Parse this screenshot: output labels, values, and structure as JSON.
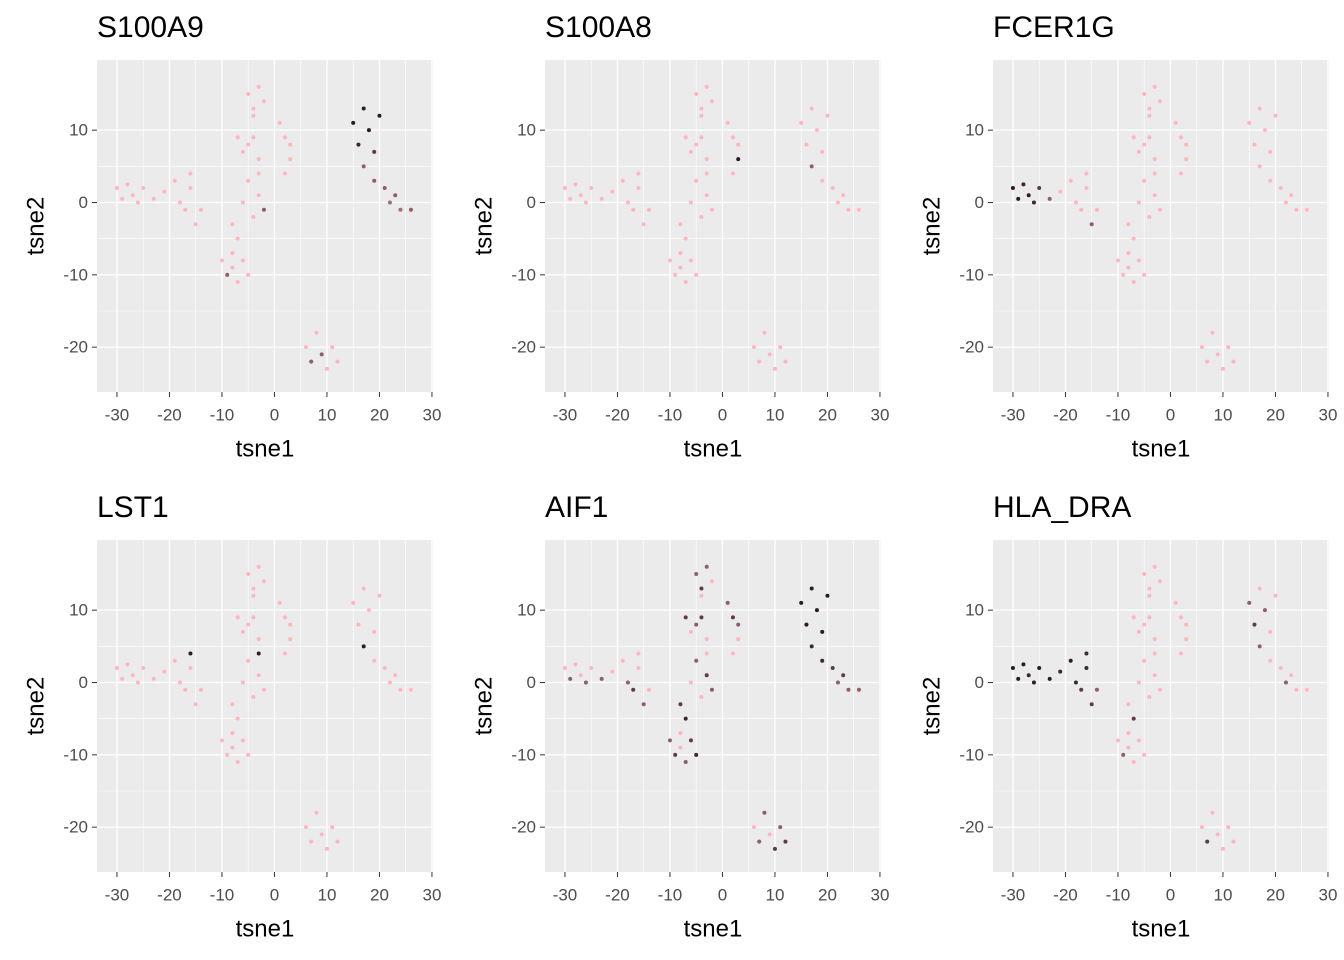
{
  "chart_data": [
    {
      "type": "scatter",
      "title": "S100A9",
      "x_label": "tsne1",
      "y_label": "tsne2",
      "xlim": [
        -33.8,
        30.2
      ],
      "ylim": [
        -26.2,
        19.7
      ],
      "xticks": [
        -30,
        -20,
        -10,
        0,
        10,
        20,
        30
      ],
      "yticks": [
        -20,
        -10,
        0,
        10
      ],
      "grid": true,
      "x": [
        -30,
        -29,
        -28,
        -27,
        -26,
        -25,
        -23,
        -21,
        -19,
        -18,
        -17,
        -16,
        -15,
        -14,
        -16,
        -10,
        -9,
        -8,
        -7,
        -6,
        -5,
        -8,
        -8,
        -6,
        -5,
        -4,
        -3,
        -2,
        -7,
        -3,
        -5,
        -4,
        -3,
        -2,
        -4,
        -7,
        -6,
        -4,
        -3,
        -5,
        1,
        2,
        3,
        2,
        3,
        15,
        16,
        17,
        18,
        19,
        20,
        17,
        19,
        21,
        22,
        23,
        24,
        26,
        6,
        7,
        8,
        9,
        10,
        11,
        12
      ],
      "y": [
        2,
        0.5,
        2.5,
        1,
        0,
        2,
        0.5,
        1.5,
        3,
        0,
        -1,
        2,
        -3,
        -1,
        4,
        -8,
        -10,
        -9,
        -11,
        -8,
        -10,
        -7,
        -3,
        0,
        3,
        -2,
        1,
        -1,
        -5,
        4,
        15,
        13,
        16,
        14,
        12,
        9,
        7,
        9,
        6,
        8,
        11,
        9,
        6,
        4,
        8,
        11,
        8,
        13,
        10,
        7,
        12,
        5,
        3,
        2,
        0,
        1,
        -1,
        -1,
        -20,
        -22,
        -18,
        -21,
        -23,
        -20,
        -22
      ],
      "colors": [
        "#ffb6c1",
        "#ffb6c1",
        "#ffb6c1",
        "#ffb6c1",
        "#ffb6c1",
        "#ffb6c1",
        "#ffb6c1",
        "#ffb6c1",
        "#ffb6c1",
        "#ffb6c1",
        "#ffb6c1",
        "#ffb6c1",
        "#ffb6c1",
        "#ffb6c1",
        "#ffb6c1",
        "#ffb6c1",
        "#8f5f68",
        "#ffb6c1",
        "#ffb6c1",
        "#ffb6c1",
        "#ffb6c1",
        "#ffb6c1",
        "#ffb6c1",
        "#ffb6c1",
        "#ffb6c1",
        "#ffb6c1",
        "#ffb6c1",
        "#8f5f68",
        "#ffb6c1",
        "#ffb6c1",
        "#ffb6c1",
        "#ffb6c1",
        "#ffb6c1",
        "#ffb6c1",
        "#ffb6c1",
        "#ffb6c1",
        "#ffb6c1",
        "#ffb6c1",
        "#ffb6c1",
        "#ffb6c1",
        "#ffb6c1",
        "#ffb6c1",
        "#ffb6c1",
        "#ffb6c1",
        "#ffb6c1",
        "#2e1c20",
        "#3f272c",
        "#2e1c20",
        "#2e1c20",
        "#5c3d43",
        "#2e1c20",
        "#8f5f68",
        "#8f5f68",
        "#8f5f68",
        "#a0707a",
        "#8f5f68",
        "#a0707a",
        "#8f5f68",
        "#ffb6c1",
        "#8f5f68",
        "#ffb6c1",
        "#8f5f68",
        "#ffb6c1",
        "#ffb6c1",
        "#ffb6c1"
      ]
    },
    {
      "type": "scatter",
      "title": "S100A8",
      "x_label": "tsne1",
      "y_label": "tsne2",
      "xlim": [
        -33.8,
        30.2
      ],
      "ylim": [
        -26.2,
        19.7
      ],
      "xticks": [
        -30,
        -20,
        -10,
        0,
        10,
        20,
        30
      ],
      "yticks": [
        -20,
        -10,
        0,
        10
      ],
      "grid": true,
      "x": [
        -30,
        -29,
        -28,
        -27,
        -26,
        -25,
        -23,
        -21,
        -19,
        -18,
        -17,
        -16,
        -15,
        -14,
        -16,
        -10,
        -9,
        -8,
        -7,
        -6,
        -5,
        -8,
        -8,
        -6,
        -5,
        -4,
        -3,
        -2,
        -7,
        -3,
        -5,
        -4,
        -3,
        -2,
        -4,
        -7,
        -6,
        -4,
        -3,
        -5,
        1,
        2,
        3,
        2,
        3,
        15,
        16,
        17,
        18,
        19,
        20,
        17,
        19,
        21,
        22,
        23,
        24,
        26,
        6,
        7,
        8,
        9,
        10,
        11,
        12
      ],
      "y": [
        2,
        0.5,
        2.5,
        1,
        0,
        2,
        0.5,
        1.5,
        3,
        0,
        -1,
        2,
        -3,
        -1,
        4,
        -8,
        -10,
        -9,
        -11,
        -8,
        -10,
        -7,
        -3,
        0,
        3,
        -2,
        1,
        -1,
        -5,
        4,
        15,
        13,
        16,
        14,
        12,
        9,
        7,
        9,
        6,
        8,
        11,
        9,
        6,
        4,
        8,
        11,
        8,
        13,
        10,
        7,
        12,
        5,
        3,
        2,
        0,
        1,
        -1,
        -1,
        -20,
        -22,
        -18,
        -21,
        -23,
        -20,
        -22
      ],
      "colors": [
        "#ffb6c1",
        "#ffb6c1",
        "#ffb6c1",
        "#ffb6c1",
        "#ffb6c1",
        "#ffb6c1",
        "#ffb6c1",
        "#ffb6c1",
        "#ffb6c1",
        "#ffb6c1",
        "#ffb6c1",
        "#ffb6c1",
        "#ffb6c1",
        "#ffb6c1",
        "#ffb6c1",
        "#ffb6c1",
        "#ffb6c1",
        "#ffb6c1",
        "#ffb6c1",
        "#ffb6c1",
        "#ffb6c1",
        "#ffb6c1",
        "#ffb6c1",
        "#ffb6c1",
        "#ffb6c1",
        "#ffb6c1",
        "#ffb6c1",
        "#ffb6c1",
        "#ffb6c1",
        "#ffb6c1",
        "#ffb6c1",
        "#ffb6c1",
        "#ffb6c1",
        "#ffb6c1",
        "#ffb6c1",
        "#ffb6c1",
        "#ffb6c1",
        "#ffb6c1",
        "#ffb6c1",
        "#ffb6c1",
        "#ffb6c1",
        "#ffb6c1",
        "#2e1c20",
        "#ffb6c1",
        "#ffb6c1",
        "#ffb6c1",
        "#ffb6c1",
        "#ffb6c1",
        "#ffb6c1",
        "#ffb6c1",
        "#ffb6c1",
        "#8f5f68",
        "#ffb6c1",
        "#ffb6c1",
        "#ffb6c1",
        "#ffb6c1",
        "#ffb6c1",
        "#ffb6c1",
        "#ffb6c1",
        "#ffb6c1",
        "#ffb6c1",
        "#ffb6c1",
        "#ffb6c1",
        "#ffb6c1",
        "#ffb6c1"
      ]
    },
    {
      "type": "scatter",
      "title": "FCER1G",
      "x_label": "tsne1",
      "y_label": "tsne2",
      "xlim": [
        -33.8,
        30.2
      ],
      "ylim": [
        -26.2,
        19.7
      ],
      "xticks": [
        -30,
        -20,
        -10,
        0,
        10,
        20,
        30
      ],
      "yticks": [
        -20,
        -10,
        0,
        10
      ],
      "grid": true,
      "x": [
        -30,
        -29,
        -28,
        -27,
        -26,
        -25,
        -23,
        -21,
        -19,
        -18,
        -17,
        -16,
        -15,
        -14,
        -16,
        -10,
        -9,
        -8,
        -7,
        -6,
        -5,
        -8,
        -8,
        -6,
        -5,
        -4,
        -3,
        -2,
        -7,
        -3,
        -5,
        -4,
        -3,
        -2,
        -4,
        -7,
        -6,
        -4,
        -3,
        -5,
        1,
        2,
        3,
        2,
        3,
        15,
        16,
        17,
        18,
        19,
        20,
        17,
        19,
        21,
        22,
        23,
        24,
        26,
        6,
        7,
        8,
        9,
        10,
        11,
        12
      ],
      "y": [
        2,
        0.5,
        2.5,
        1,
        0,
        2,
        0.5,
        1.5,
        3,
        0,
        -1,
        2,
        -3,
        -1,
        4,
        -8,
        -10,
        -9,
        -11,
        -8,
        -10,
        -7,
        -3,
        0,
        3,
        -2,
        1,
        -1,
        -5,
        4,
        15,
        13,
        16,
        14,
        12,
        9,
        7,
        9,
        6,
        8,
        11,
        9,
        6,
        4,
        8,
        11,
        8,
        13,
        10,
        7,
        12,
        5,
        3,
        2,
        0,
        1,
        -1,
        -1,
        -20,
        -22,
        -18,
        -21,
        -23,
        -20,
        -22
      ],
      "colors": [
        "#2e1c20",
        "#2e1c20",
        "#3f272c",
        "#2e1c20",
        "#3f272c",
        "#5c3d43",
        "#8f5f68",
        "#ffb6c1",
        "#ffb6c1",
        "#ffb6c1",
        "#ffb6c1",
        "#ffb6c1",
        "#8f5f68",
        "#ffb6c1",
        "#ffb6c1",
        "#ffb6c1",
        "#ffb6c1",
        "#ffb6c1",
        "#ffb6c1",
        "#ffb6c1",
        "#ffb6c1",
        "#ffb6c1",
        "#ffb6c1",
        "#ffb6c1",
        "#ffb6c1",
        "#ffb6c1",
        "#ffb6c1",
        "#ffb6c1",
        "#ffb6c1",
        "#ffb6c1",
        "#ffb6c1",
        "#ffb6c1",
        "#ffb6c1",
        "#ffb6c1",
        "#ffb6c1",
        "#ffb6c1",
        "#ffb6c1",
        "#ffb6c1",
        "#ffb6c1",
        "#ffb6c1",
        "#ffb6c1",
        "#ffb6c1",
        "#ffb6c1",
        "#ffb6c1",
        "#ffb6c1",
        "#ffb6c1",
        "#ffb6c1",
        "#ffb6c1",
        "#ffb6c1",
        "#ffb6c1",
        "#ffb6c1",
        "#ffb6c1",
        "#ffb6c1",
        "#ffb6c1",
        "#ffb6c1",
        "#ffb6c1",
        "#ffb6c1",
        "#ffb6c1",
        "#ffb6c1",
        "#ffb6c1",
        "#ffb6c1",
        "#ffb6c1",
        "#ffb6c1",
        "#ffb6c1",
        "#ffb6c1"
      ]
    },
    {
      "type": "scatter",
      "title": "LST1",
      "x_label": "tsne1",
      "y_label": "tsne2",
      "xlim": [
        -33.8,
        30.2
      ],
      "ylim": [
        -26.2,
        19.7
      ],
      "xticks": [
        -30,
        -20,
        -10,
        0,
        10,
        20,
        30
      ],
      "yticks": [
        -20,
        -10,
        0,
        10
      ],
      "grid": true,
      "x": [
        -30,
        -29,
        -28,
        -27,
        -26,
        -25,
        -23,
        -21,
        -19,
        -18,
        -17,
        -16,
        -15,
        -14,
        -16,
        -10,
        -9,
        -8,
        -7,
        -6,
        -5,
        -8,
        -8,
        -6,
        -5,
        -4,
        -3,
        -2,
        -7,
        -3,
        -5,
        -4,
        -3,
        -2,
        -4,
        -7,
        -6,
        -4,
        -3,
        -5,
        1,
        2,
        3,
        2,
        3,
        15,
        16,
        17,
        18,
        19,
        20,
        17,
        19,
        21,
        22,
        23,
        24,
        26,
        6,
        7,
        8,
        9,
        10,
        11,
        12
      ],
      "y": [
        2,
        0.5,
        2.5,
        1,
        0,
        2,
        0.5,
        1.5,
        3,
        0,
        -1,
        2,
        -3,
        -1,
        4,
        -8,
        -10,
        -9,
        -11,
        -8,
        -10,
        -7,
        -3,
        0,
        3,
        -2,
        1,
        -1,
        -5,
        4,
        15,
        13,
        16,
        14,
        12,
        9,
        7,
        9,
        6,
        8,
        11,
        9,
        6,
        4,
        8,
        11,
        8,
        13,
        10,
        7,
        12,
        5,
        3,
        2,
        0,
        1,
        -1,
        -1,
        -20,
        -22,
        -18,
        -21,
        -23,
        -20,
        -22
      ],
      "colors": [
        "#ffb6c1",
        "#ffb6c1",
        "#ffb6c1",
        "#ffb6c1",
        "#ffb6c1",
        "#ffb6c1",
        "#ffb6c1",
        "#ffb6c1",
        "#ffb6c1",
        "#ffb6c1",
        "#ffb6c1",
        "#ffb6c1",
        "#ffb6c1",
        "#ffb6c1",
        "#2e1c20",
        "#ffb6c1",
        "#ffb6c1",
        "#ffb6c1",
        "#ffb6c1",
        "#ffb6c1",
        "#ffb6c1",
        "#ffb6c1",
        "#ffb6c1",
        "#ffb6c1",
        "#ffb6c1",
        "#ffb6c1",
        "#ffb6c1",
        "#ffb6c1",
        "#ffb6c1",
        "#2e1c20",
        "#ffb6c1",
        "#ffb6c1",
        "#ffb6c1",
        "#ffb6c1",
        "#ffb6c1",
        "#ffb6c1",
        "#ffb6c1",
        "#ffb6c1",
        "#ffb6c1",
        "#ffb6c1",
        "#ffb6c1",
        "#ffb6c1",
        "#ffb6c1",
        "#ffb6c1",
        "#ffb6c1",
        "#ffb6c1",
        "#ffb6c1",
        "#ffb6c1",
        "#ffb6c1",
        "#ffb6c1",
        "#ffb6c1",
        "#2e1c20",
        "#ffb6c1",
        "#ffb6c1",
        "#ffb6c1",
        "#ffb6c1",
        "#ffb6c1",
        "#ffb6c1",
        "#ffb6c1",
        "#ffb6c1",
        "#ffb6c1",
        "#ffb6c1",
        "#ffb6c1",
        "#ffb6c1",
        "#ffb6c1"
      ]
    },
    {
      "type": "scatter",
      "title": "AIF1",
      "x_label": "tsne1",
      "y_label": "tsne2",
      "xlim": [
        -33.8,
        30.2
      ],
      "ylim": [
        -26.2,
        19.7
      ],
      "xticks": [
        -30,
        -20,
        -10,
        0,
        10,
        20,
        30
      ],
      "yticks": [
        -20,
        -10,
        0,
        10
      ],
      "grid": true,
      "x": [
        -30,
        -29,
        -28,
        -27,
        -26,
        -25,
        -23,
        -21,
        -19,
        -18,
        -17,
        -16,
        -15,
        -14,
        -16,
        -10,
        -9,
        -8,
        -7,
        -6,
        -5,
        -8,
        -8,
        -6,
        -5,
        -4,
        -3,
        -2,
        -7,
        -3,
        -5,
        -4,
        -3,
        -2,
        -4,
        -7,
        -6,
        -4,
        -3,
        -5,
        1,
        2,
        3,
        2,
        3,
        15,
        16,
        17,
        18,
        19,
        20,
        17,
        19,
        21,
        22,
        23,
        24,
        26,
        6,
        7,
        8,
        9,
        10,
        11,
        12
      ],
      "y": [
        2,
        0.5,
        2.5,
        1,
        0,
        2,
        0.5,
        1.5,
        3,
        0,
        -1,
        2,
        -3,
        -1,
        4,
        -8,
        -10,
        -9,
        -11,
        -8,
        -10,
        -7,
        -3,
        0,
        3,
        -2,
        1,
        -1,
        -5,
        4,
        15,
        13,
        16,
        14,
        12,
        9,
        7,
        9,
        6,
        8,
        11,
        9,
        6,
        4,
        8,
        11,
        8,
        13,
        10,
        7,
        12,
        5,
        3,
        2,
        0,
        1,
        -1,
        -1,
        -20,
        -22,
        -18,
        -21,
        -23,
        -20,
        -22
      ],
      "colors": [
        "#ffb6c1",
        "#8f5f68",
        "#ffb6c1",
        "#ffb6c1",
        "#8f5f68",
        "#ffb6c1",
        "#8f5f68",
        "#ffb6c1",
        "#ffb6c1",
        "#8f5f68",
        "#5c3d43",
        "#ffb6c1",
        "#8f5f68",
        "#ffb6c1",
        "#ffb6c1",
        "#8f5f68",
        "#5c3d43",
        "#ffb6c1",
        "#8f5f68",
        "#5c3d43",
        "#3f272c",
        "#ffb6c1",
        "#5c3d43",
        "#ffb6c1",
        "#8f5f68",
        "#ffb6c1",
        "#5c3d43",
        "#8f5f68",
        "#3f272c",
        "#ffb6c1",
        "#8f5f68",
        "#5c3d43",
        "#8f5f68",
        "#ffb6c1",
        "#ffb6c1",
        "#5c3d43",
        "#ffb6c1",
        "#5c3d43",
        "#ffb6c1",
        "#8f5f68",
        "#8f5f68",
        "#5c3d43",
        "#ffb6c1",
        "#ffb6c1",
        "#8f5f68",
        "#2e1c20",
        "#2e1c20",
        "#2e1c20",
        "#2e1c20",
        "#2e1c20",
        "#2e1c20",
        "#3f272c",
        "#3f272c",
        "#5c3d43",
        "#8f5f68",
        "#5c3d43",
        "#8f5f68",
        "#8f5f68",
        "#ffb6c1",
        "#8f5f68",
        "#8f5f68",
        "#ffb6c1",
        "#5c3d43",
        "#8f5f68",
        "#5c3d43"
      ]
    },
    {
      "type": "scatter",
      "title": "HLA_DRA",
      "x_label": "tsne1",
      "y_label": "tsne2",
      "xlim": [
        -33.8,
        30.2
      ],
      "ylim": [
        -26.2,
        19.7
      ],
      "xticks": [
        -30,
        -20,
        -10,
        0,
        10,
        20,
        30
      ],
      "yticks": [
        -20,
        -10,
        0,
        10
      ],
      "grid": true,
      "x": [
        -30,
        -29,
        -28,
        -27,
        -26,
        -25,
        -23,
        -21,
        -19,
        -18,
        -17,
        -16,
        -15,
        -14,
        -16,
        -10,
        -9,
        -8,
        -7,
        -6,
        -5,
        -8,
        -8,
        -6,
        -5,
        -4,
        -3,
        -2,
        -7,
        -3,
        -5,
        -4,
        -3,
        -2,
        -4,
        -7,
        -6,
        -4,
        -3,
        -5,
        1,
        2,
        3,
        2,
        3,
        15,
        16,
        17,
        18,
        19,
        20,
        17,
        19,
        21,
        22,
        23,
        24,
        26,
        6,
        7,
        8,
        9,
        10,
        11,
        12
      ],
      "y": [
        2,
        0.5,
        2.5,
        1,
        0,
        2,
        0.5,
        1.5,
        3,
        0,
        -1,
        2,
        -3,
        -1,
        4,
        -8,
        -10,
        -9,
        -11,
        -8,
        -10,
        -7,
        -3,
        0,
        3,
        -2,
        1,
        -1,
        -5,
        4,
        15,
        13,
        16,
        14,
        12,
        9,
        7,
        9,
        6,
        8,
        11,
        9,
        6,
        4,
        8,
        11,
        8,
        13,
        10,
        7,
        12,
        5,
        3,
        2,
        0,
        1,
        -1,
        -1,
        -20,
        -22,
        -18,
        -21,
        -23,
        -20,
        -22
      ],
      "colors": [
        "#2e1c20",
        "#2e1c20",
        "#2e1c20",
        "#3f272c",
        "#2e1c20",
        "#2e1c20",
        "#2e1c20",
        "#3f272c",
        "#2e1c20",
        "#3f272c",
        "#5c3d43",
        "#3f272c",
        "#5c3d43",
        "#8f5f68",
        "#3f272c",
        "#ffb6c1",
        "#8f5f68",
        "#ffb6c1",
        "#ffb6c1",
        "#ffb6c1",
        "#ffb6c1",
        "#ffb6c1",
        "#ffb6c1",
        "#ffb6c1",
        "#ffb6c1",
        "#ffb6c1",
        "#ffb6c1",
        "#ffb6c1",
        "#5c3d43",
        "#ffb6c1",
        "#ffb6c1",
        "#ffb6c1",
        "#ffb6c1",
        "#ffb6c1",
        "#ffb6c1",
        "#ffb6c1",
        "#ffb6c1",
        "#ffb6c1",
        "#ffb6c1",
        "#ffb6c1",
        "#ffb6c1",
        "#ffb6c1",
        "#ffb6c1",
        "#ffb6c1",
        "#ffb6c1",
        "#8f5f68",
        "#5c3d43",
        "#ffb6c1",
        "#8f5f68",
        "#ffb6c1",
        "#ffb6c1",
        "#8f5f68",
        "#ffb6c1",
        "#ffb6c1",
        "#8f5f68",
        "#ffb6c1",
        "#ffb6c1",
        "#ffb6c1",
        "#ffb6c1",
        "#5c3d43",
        "#ffb6c1",
        "#ffb6c1",
        "#ffb6c1",
        "#ffb6c1",
        "#ffb6c1"
      ]
    }
  ]
}
